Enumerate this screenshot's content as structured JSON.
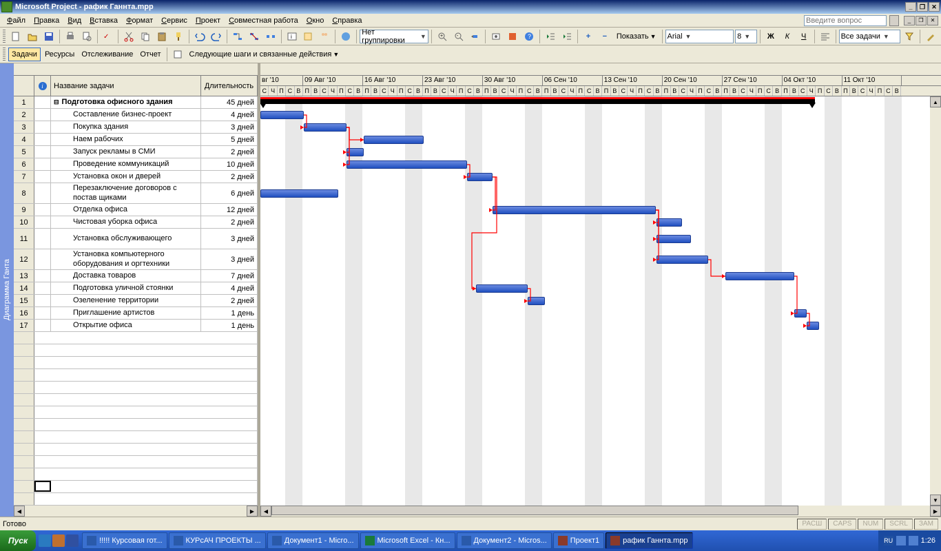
{
  "title": "Microsoft Project - рафик Ганнта.mpp",
  "ask_placeholder": "Введите вопрос",
  "menu": [
    "Файл",
    "Правка",
    "Вид",
    "Вставка",
    "Формат",
    "Сервис",
    "Проект",
    "Совместная работа",
    "Окно",
    "Справка"
  ],
  "toolbar1": {
    "group_by": "Нет группировки",
    "show": "Показать",
    "font_name": "Arial",
    "font_size": "8",
    "filter": "Все задачи"
  },
  "toolbar2": {
    "tasks": "Задачи",
    "resources": "Ресурсы",
    "tracking": "Отслеживание",
    "report": "Отчет",
    "next_steps": "Следующие шаги и связанные действия"
  },
  "columns": {
    "name": "Название задачи",
    "duration": "Длительность"
  },
  "sidebar_label": "Диаграмма Ганта",
  "tasks": [
    {
      "id": 1,
      "name": "Подготовка офисного здания",
      "duration": "45 дней",
      "summary": true,
      "indent": 0,
      "tall": false,
      "start": 0,
      "len": 805
    },
    {
      "id": 2,
      "name": "Составление бизнес-проект",
      "duration": "4 дней",
      "indent": 1,
      "start": 0,
      "len": 63
    },
    {
      "id": 3,
      "name": "Покупка здания",
      "duration": "3 дней",
      "indent": 1,
      "start": 63,
      "len": 62
    },
    {
      "id": 4,
      "name": "Наем рабочих",
      "duration": "5 дней",
      "indent": 1,
      "start": 150,
      "len": 87
    },
    {
      "id": 5,
      "name": "Запуск рекламы в СМИ",
      "duration": "2 дней",
      "indent": 1,
      "start": 125,
      "len": 25
    },
    {
      "id": 6,
      "name": "Проведение коммуникаций",
      "duration": "10 дней",
      "indent": 1,
      "start": 125,
      "len": 175
    },
    {
      "id": 7,
      "name": "Установка окон и дверей",
      "duration": "2 дней",
      "indent": 1,
      "start": 300,
      "len": 37
    },
    {
      "id": 8,
      "name": "Перезаключение договоров с постав щиками",
      "duration": "6 дней",
      "indent": 1,
      "tall": true,
      "start": 0,
      "len": 113
    },
    {
      "id": 9,
      "name": "Отделка офиса",
      "duration": "12 дней",
      "indent": 1,
      "start": 337,
      "len": 237
    },
    {
      "id": 10,
      "name": "Чистовая уборка офиса",
      "duration": "2 дней",
      "indent": 1,
      "start": 575,
      "len": 37
    },
    {
      "id": 11,
      "name": "Установка обслуживающего",
      "duration": "3 дней",
      "indent": 1,
      "tall": true,
      "start": 575,
      "len": 50
    },
    {
      "id": 12,
      "name": "Установка компьютерного оборудования и оргтехники",
      "duration": "3 дней",
      "indent": 1,
      "tall": true,
      "start": 575,
      "len": 75
    },
    {
      "id": 13,
      "name": "Доставка товаров",
      "duration": "7 дней",
      "indent": 1,
      "start": 675,
      "len": 100
    },
    {
      "id": 14,
      "name": "Подготовка уличной стоянки",
      "duration": "4 дней",
      "indent": 1,
      "start": 313,
      "len": 75
    },
    {
      "id": 15,
      "name": "Озеленение территории",
      "duration": "2 дней",
      "indent": 1,
      "start": 388,
      "len": 25
    },
    {
      "id": 16,
      "name": "Приглашение артистов",
      "duration": "1 день",
      "indent": 1,
      "start": 775,
      "len": 18
    },
    {
      "id": 17,
      "name": "Открытие офиса",
      "duration": "1 день",
      "indent": 1,
      "start": 793,
      "len": 18
    }
  ],
  "weeks": [
    "вг '10",
    "09 Авг '10",
    "16 Авг '10",
    "23 Авг '10",
    "30 Авг '10",
    "06 Сен '10",
    "13 Сен '10",
    "20 Сен '10",
    "27 Сен '10",
    "04 Окт '10",
    "11 Окт '10"
  ],
  "days_pattern": [
    "С",
    "Ч",
    "П",
    "С",
    "В",
    "П",
    "В"
  ],
  "days_first": [
    "С",
    "Ч",
    "П",
    "С",
    "В"
  ],
  "weekend_stripes": [
    36,
    123,
    210,
    297,
    384,
    471,
    558,
    645,
    732,
    819,
    906
  ],
  "gantt_colors": {
    "bar_fill": "#2050c0",
    "bar_border": "#1a3a90",
    "summary": "#000000",
    "link": "#ff0000",
    "weekend": "#e8e8e8"
  },
  "row_heights": {
    "normal": 18,
    "tall": 30
  },
  "day_width": 12.42,
  "status_ready": "Готово",
  "status_panels": [
    "РАСШ",
    "CAPS",
    "NUM",
    "SCRL",
    "ЗАМ"
  ],
  "taskbar": {
    "start": "Пуск",
    "tasks": [
      {
        "label": "!!!!! Курсовая гот...",
        "color": "#2a5aaa"
      },
      {
        "label": "КУРсАЧ ПРОЕКТЫ ...",
        "color": "#2a5aaa"
      },
      {
        "label": "Документ1 - Micro...",
        "color": "#2a5aaa"
      },
      {
        "label": "Microsoft Excel - Кн...",
        "color": "#1a7a3a"
      },
      {
        "label": "Документ2 - Micros...",
        "color": "#2a5aaa"
      },
      {
        "label": "Проект1",
        "color": "#8a3a2a"
      },
      {
        "label": "рафик Ганнта.mpp",
        "color": "#8a3a2a",
        "active": true
      }
    ],
    "clock": "1:26",
    "lang": "RU"
  },
  "links": [
    {
      "from": 2,
      "to": 3
    },
    {
      "from": 3,
      "to": 4
    },
    {
      "from": 3,
      "to": 5
    },
    {
      "from": 3,
      "to": 6
    },
    {
      "from": 6,
      "to": 7
    },
    {
      "from": 7,
      "to": 9
    },
    {
      "from": 9,
      "to": 10
    },
    {
      "from": 9,
      "to": 11
    },
    {
      "from": 9,
      "to": 12
    },
    {
      "from": 12,
      "to": 13
    },
    {
      "from": 7,
      "to": 14
    },
    {
      "from": 14,
      "to": 15
    },
    {
      "from": 13,
      "to": 16
    },
    {
      "from": 16,
      "to": 17
    }
  ]
}
